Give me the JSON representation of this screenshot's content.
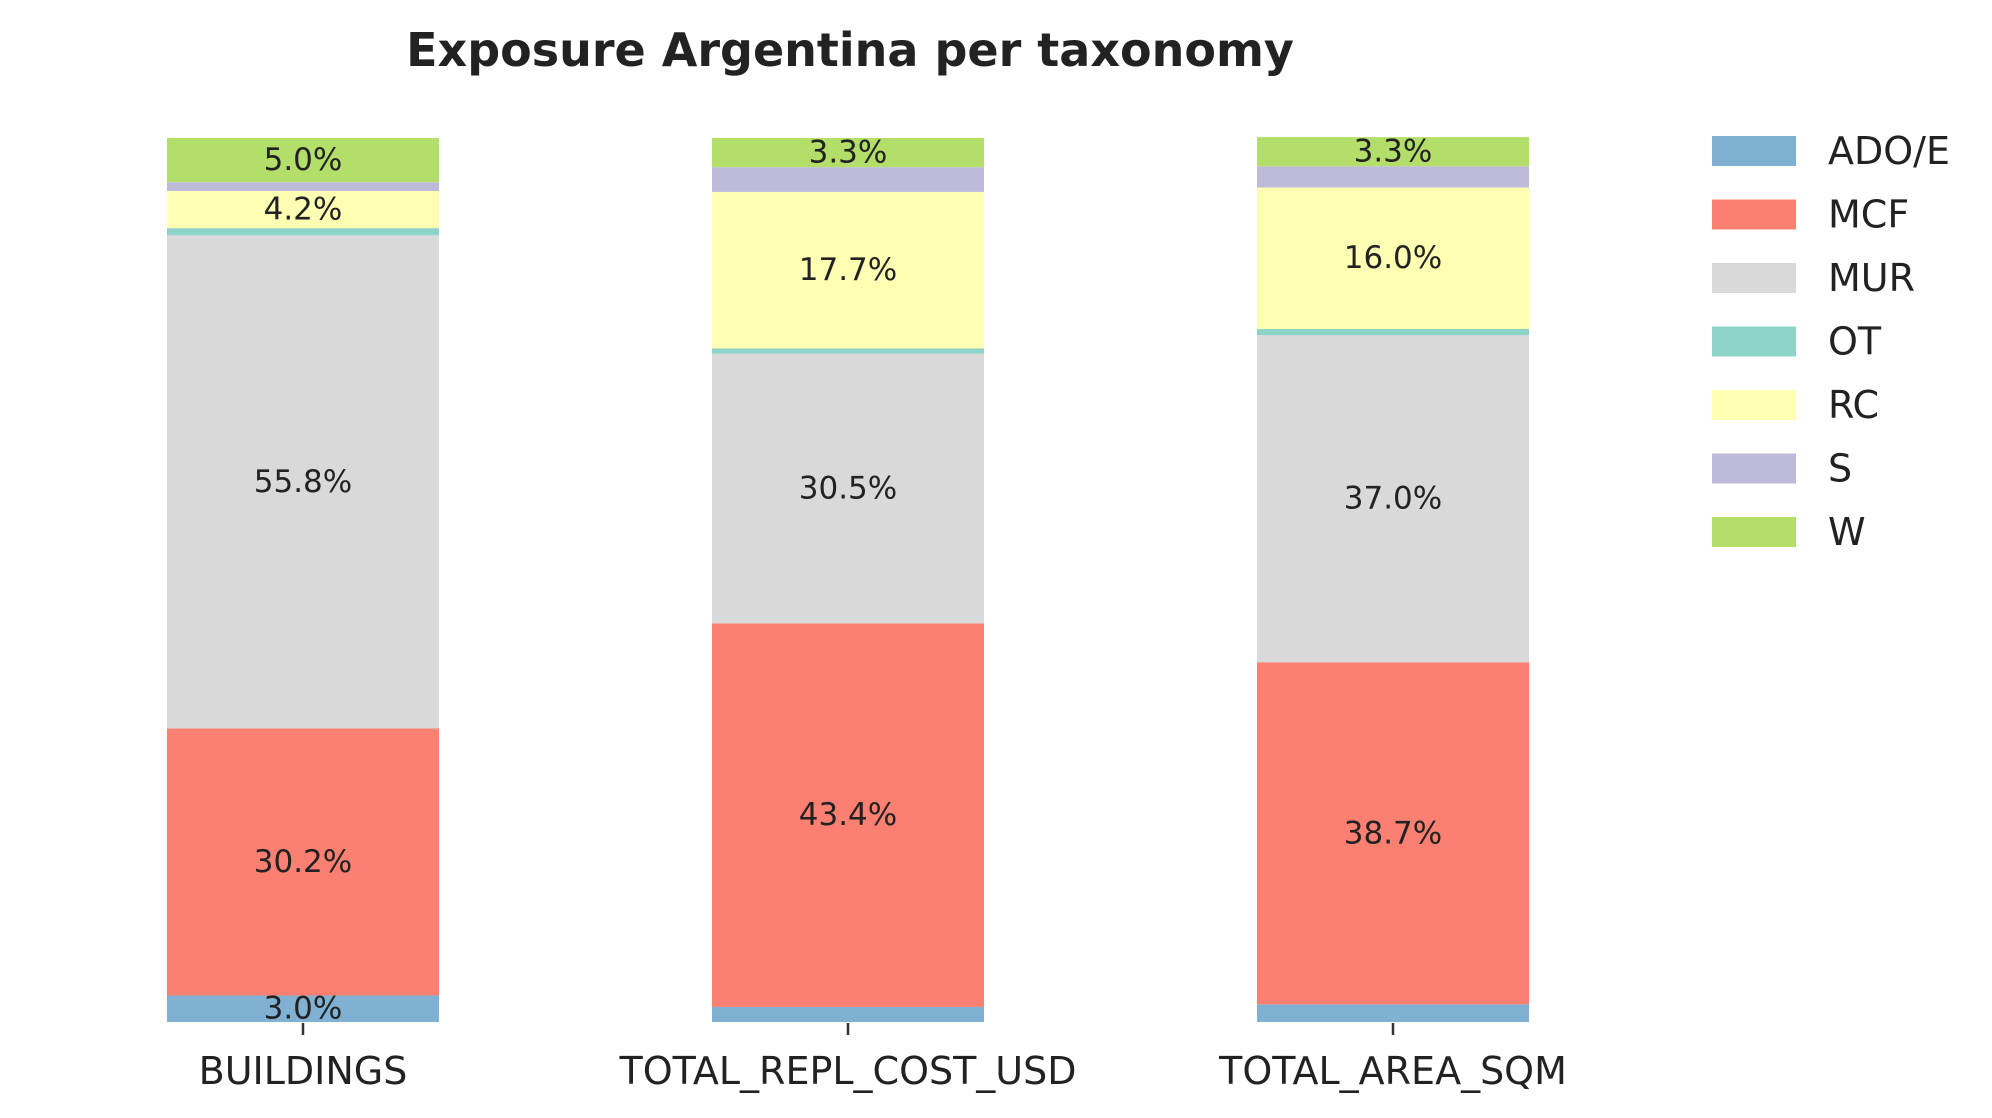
{
  "chart_data": {
    "type": "bar",
    "stacked": true,
    "title": "Exposure Argentina per taxonomy",
    "xlabel": "",
    "ylabel": "",
    "ylim": [
      0,
      100
    ],
    "categories": [
      "BUILDINGS",
      "TOTAL_REPL_COST_USD",
      "TOTAL_AREA_SQM"
    ],
    "legend_position": "right",
    "series": [
      {
        "name": "ADO/E",
        "color": "#80b1d3",
        "values": [
          3.0,
          1.7,
          2.0
        ]
      },
      {
        "name": "MCF",
        "color": "#fb8072",
        "values": [
          30.2,
          43.4,
          38.7
        ]
      },
      {
        "name": "MUR",
        "color": "#d9d9d9",
        "values": [
          55.8,
          30.5,
          37.0
        ]
      },
      {
        "name": "OT",
        "color": "#8dd3c7",
        "values": [
          0.8,
          0.6,
          0.7
        ]
      },
      {
        "name": "RC",
        "color": "#ffffb3",
        "values": [
          4.2,
          17.7,
          16.0
        ]
      },
      {
        "name": "S",
        "color": "#bebada",
        "values": [
          1.0,
          2.8,
          2.4
        ]
      },
      {
        "name": "W",
        "color": "#b3de69",
        "values": [
          5.0,
          3.3,
          3.3
        ]
      }
    ],
    "data_labels": [
      [
        "3.0%",
        "",
        ""
      ],
      [
        "30.2%",
        "43.4%",
        "38.7%"
      ],
      [
        "55.8%",
        "30.5%",
        "37.0%"
      ],
      [
        "",
        "",
        ""
      ],
      [
        "4.2%",
        "17.7%",
        "16.0%"
      ],
      [
        "",
        "",
        ""
      ],
      [
        "5.0%",
        "3.3%",
        "3.3%"
      ]
    ]
  }
}
